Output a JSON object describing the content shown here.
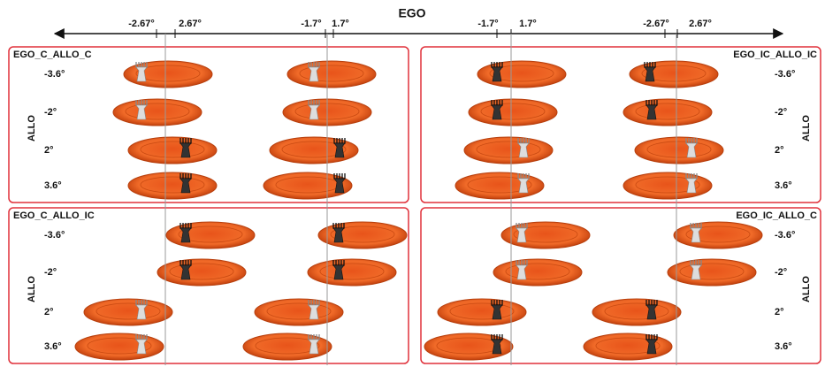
{
  "axis": {
    "label": "EGO",
    "ticks": [
      "-2.67°",
      "2.67°",
      "-1.7°",
      "1.7°",
      "-1.7°",
      "1.7°",
      "-2.67°",
      "2.67°"
    ]
  },
  "panels": [
    {
      "label": "EGO_C_ALLO_C",
      "axis_label": "ALLO",
      "rows": [
        "-3.6°",
        "-2°",
        "2°",
        "3.6°"
      ]
    },
    {
      "label": "EGO_IC_ALLO_IC",
      "axis_label": "ALLO",
      "rows": [
        "-3.6°",
        "-2°",
        "2°",
        "3.6°"
      ]
    },
    {
      "label": "EGO_C_ALLO_IC",
      "axis_label": "ALLO",
      "rows": [
        "-3.6°",
        "-2°",
        "2°",
        "3.6°"
      ]
    },
    {
      "label": "EGO_IC_ALLO_C",
      "axis_label": "ALLO",
      "rows": [
        "-3.6°",
        "-2°",
        "2°",
        "3.6°"
      ]
    }
  ]
}
